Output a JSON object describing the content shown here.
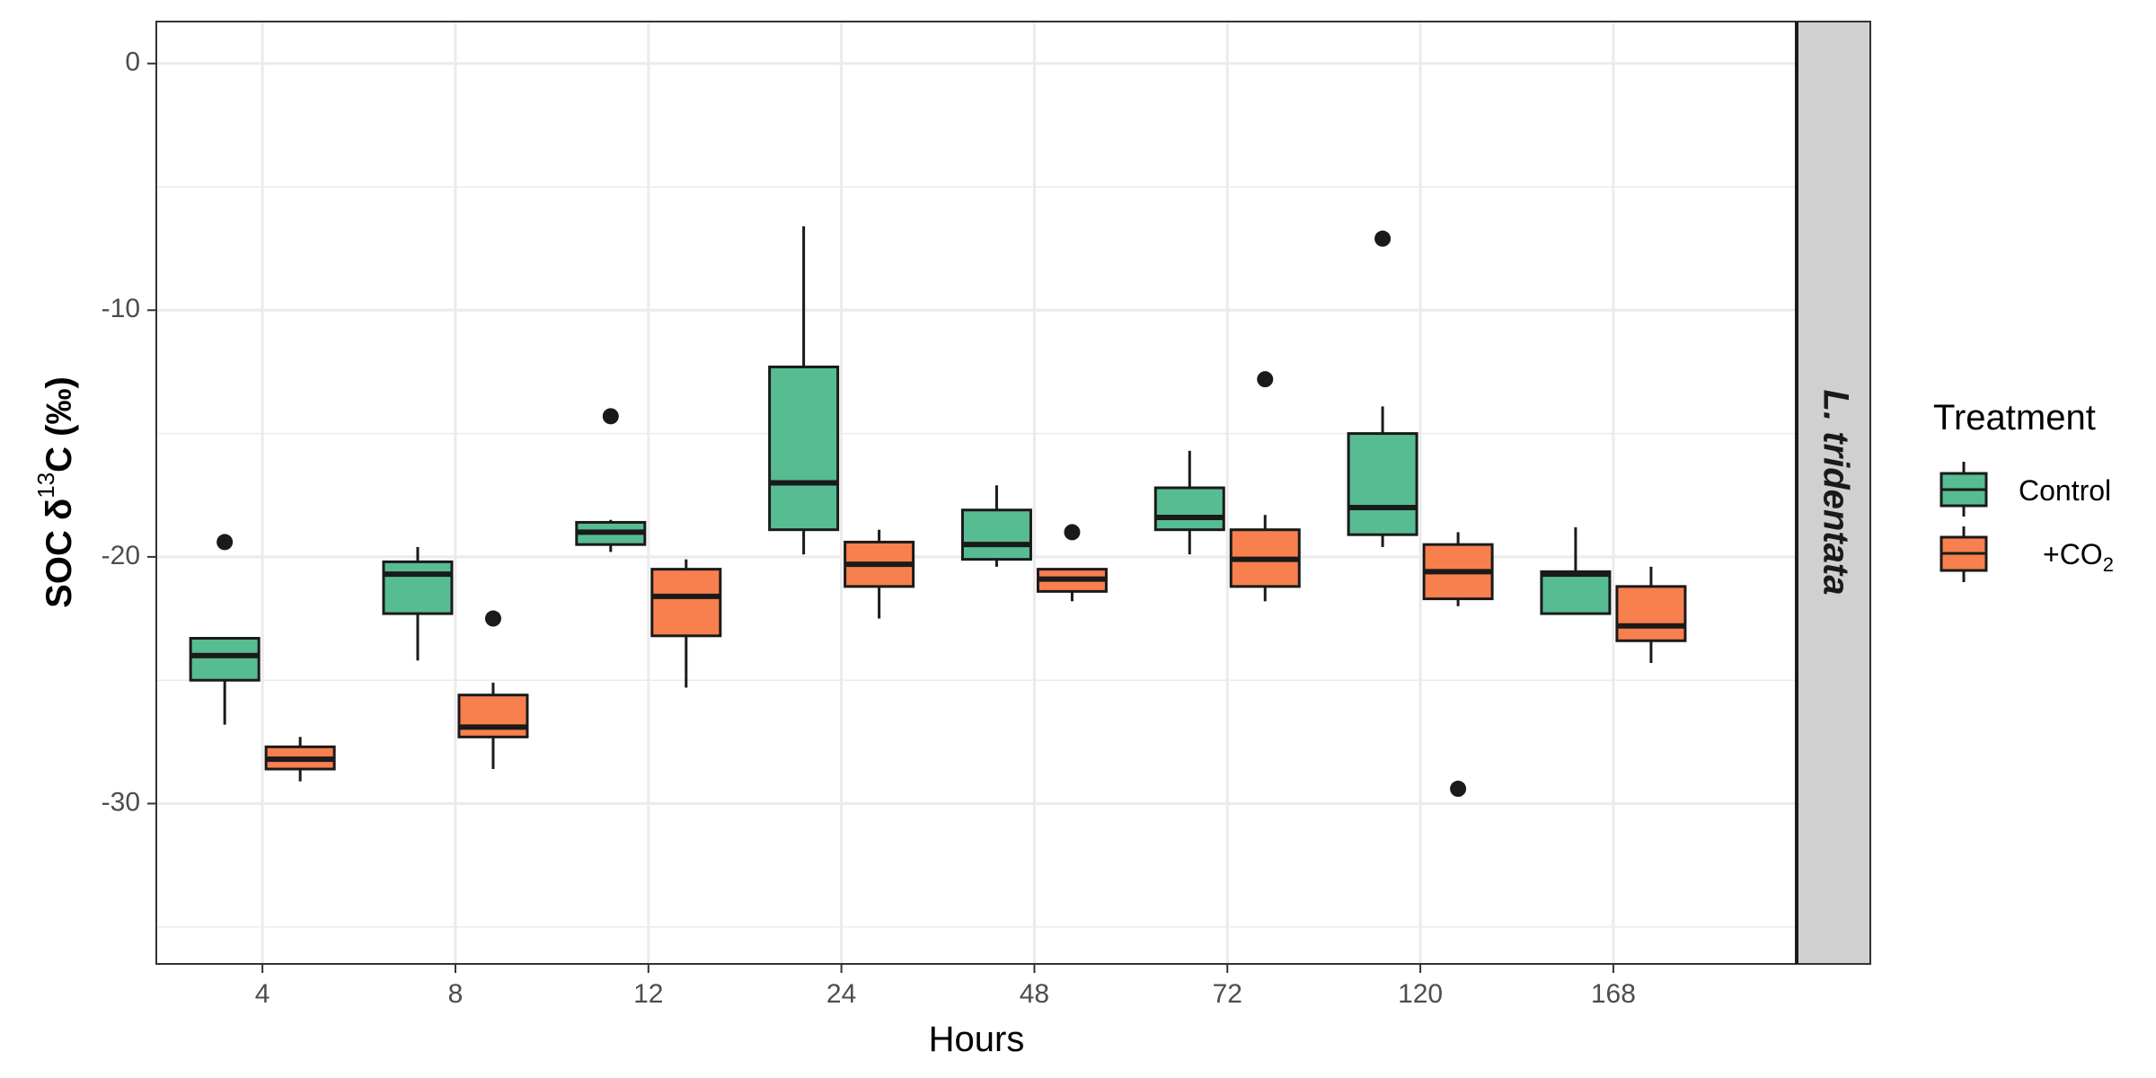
{
  "chart_data": {
    "type": "boxplot",
    "xlabel": "Hours",
    "ylabel": {
      "prefix": "SOC δ",
      "superscript": "13",
      "suffix": "C (‰)"
    },
    "facet_label": "L. tridentata",
    "categories": [
      "4",
      "8",
      "12",
      "24",
      "48",
      "72",
      "120",
      "168"
    ],
    "ylim": [
      -36.5,
      1.7
    ],
    "yticks": [
      0,
      -10,
      -20,
      -30
    ],
    "ytick_labels": [
      "0",
      "-10",
      "-20",
      "-30"
    ],
    "grid": true,
    "legend": {
      "title": "Treatment",
      "position": "right",
      "entries": [
        {
          "label": "Control",
          "color": "#57bc92"
        },
        {
          "label_prefix": "+CO",
          "label_subscript": "2",
          "color": "#f7804e"
        }
      ]
    },
    "series": [
      {
        "name": "Control",
        "color": "#57bc92",
        "boxes": [
          {
            "category": "4",
            "whisker_low": -26.8,
            "q1": -25.0,
            "median": -24.0,
            "q3": -23.3,
            "whisker_high": -23.3,
            "outliers": [
              -19.4
            ]
          },
          {
            "category": "8",
            "whisker_low": -24.2,
            "q1": -22.3,
            "median": -20.7,
            "q3": -20.2,
            "whisker_high": -19.6,
            "outliers": []
          },
          {
            "category": "12",
            "whisker_low": -19.8,
            "q1": -19.5,
            "median": -19.0,
            "q3": -18.6,
            "whisker_high": -18.5,
            "outliers": [
              -14.3
            ]
          },
          {
            "category": "24",
            "whisker_low": -19.9,
            "q1": -18.9,
            "median": -17.0,
            "q3": -12.3,
            "whisker_high": -6.6,
            "outliers": []
          },
          {
            "category": "48",
            "whisker_low": -20.4,
            "q1": -20.1,
            "median": -19.5,
            "q3": -18.1,
            "whisker_high": -17.1,
            "outliers": []
          },
          {
            "category": "72",
            "whisker_low": -19.9,
            "q1": -18.9,
            "median": -18.4,
            "q3": -17.2,
            "whisker_high": -15.7,
            "outliers": []
          },
          {
            "category": "120",
            "whisker_low": -19.6,
            "q1": -19.1,
            "median": -18.0,
            "q3": -15.0,
            "whisker_high": -13.9,
            "outliers": [
              -7.1
            ]
          },
          {
            "category": "168",
            "whisker_low": -22.3,
            "q1": -22.3,
            "median": -20.7,
            "q3": -20.6,
            "whisker_high": -18.8,
            "outliers": []
          }
        ]
      },
      {
        "name": "+CO2",
        "color": "#f7804e",
        "boxes": [
          {
            "category": "4",
            "whisker_low": -29.1,
            "q1": -28.6,
            "median": -28.2,
            "q3": -27.7,
            "whisker_high": -27.3,
            "outliers": []
          },
          {
            "category": "8",
            "whisker_low": -28.6,
            "q1": -27.3,
            "median": -26.9,
            "q3": -25.6,
            "whisker_high": -25.1,
            "outliers": [
              -22.5
            ]
          },
          {
            "category": "12",
            "whisker_low": -25.3,
            "q1": -23.2,
            "median": -21.6,
            "q3": -20.5,
            "whisker_high": -20.1,
            "outliers": []
          },
          {
            "category": "24",
            "whisker_low": -22.5,
            "q1": -21.2,
            "median": -20.3,
            "q3": -19.4,
            "whisker_high": -18.9,
            "outliers": []
          },
          {
            "category": "48",
            "whisker_low": -21.8,
            "q1": -21.4,
            "median": -20.9,
            "q3": -20.5,
            "whisker_high": -20.5,
            "outliers": [
              -19.0
            ]
          },
          {
            "category": "72",
            "whisker_low": -21.8,
            "q1": -21.2,
            "median": -20.1,
            "q3": -18.9,
            "whisker_high": -18.3,
            "outliers": [
              -12.8
            ]
          },
          {
            "category": "120",
            "whisker_low": -22.0,
            "q1": -21.7,
            "median": -20.6,
            "q3": -19.5,
            "whisker_high": -19.0,
            "outliers": [
              -29.4
            ]
          },
          {
            "category": "168",
            "whisker_low": -24.3,
            "q1": -23.4,
            "median": -22.8,
            "q3": -21.2,
            "whisker_high": -20.4,
            "outliers": []
          }
        ]
      }
    ]
  }
}
